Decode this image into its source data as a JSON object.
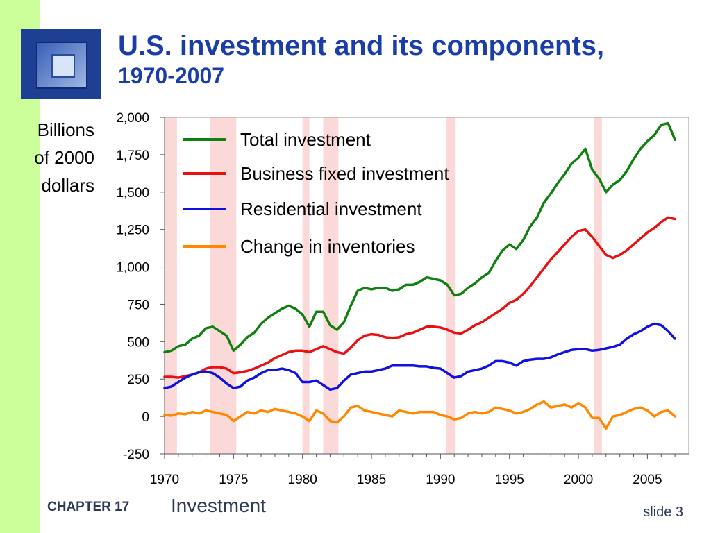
{
  "title": {
    "line1": "U.S. investment and its components,",
    "line2": "1970-2007"
  },
  "yunits": [
    "Billions",
    "of 2000",
    "dollars"
  ],
  "footer": {
    "chapter": "CHAPTER 17",
    "topic": "Investment",
    "slide": "slide 3"
  },
  "chart_data": {
    "type": "line",
    "xlim": [
      1970,
      2008
    ],
    "ylim": [
      -250,
      2000
    ],
    "x_ticks": [
      1970,
      1975,
      1980,
      1985,
      1990,
      1995,
      2000,
      2005
    ],
    "x_tick_labels": [
      "1970",
      "1975",
      "1980",
      "1985",
      "1990",
      "1995",
      "2000",
      "2005"
    ],
    "y_ticks": [
      -250,
      0,
      250,
      500,
      750,
      1000,
      1250,
      1500,
      1750,
      2000
    ],
    "y_tick_labels": [
      "-250",
      "0",
      "250",
      "500",
      "750",
      "1,000",
      "1,250",
      "1,500",
      "1,750",
      "2,000"
    ],
    "recession_color": "#fbd9d9",
    "recessions": [
      [
        1970.0,
        1970.9
      ],
      [
        1973.3,
        1975.2
      ],
      [
        1980.0,
        1980.5
      ],
      [
        1981.5,
        1982.6
      ],
      [
        1990.4,
        1991.1
      ],
      [
        2001.1,
        2001.7
      ]
    ],
    "series": [
      {
        "name": "Total investment",
        "color": "#108010",
        "x": [
          1970,
          1970.5,
          1971,
          1971.5,
          1972,
          1972.5,
          1973,
          1973.5,
          1974,
          1974.5,
          1975,
          1975.5,
          1976,
          1976.5,
          1977,
          1977.5,
          1978,
          1978.5,
          1979,
          1979.5,
          1980,
          1980.5,
          1981,
          1981.5,
          1982,
          1982.5,
          1983,
          1983.5,
          1984,
          1984.5,
          1985,
          1985.5,
          1986,
          1986.5,
          1987,
          1987.5,
          1988,
          1988.5,
          1989,
          1989.5,
          1990,
          1990.5,
          1991,
          1991.5,
          1992,
          1992.5,
          1993,
          1993.5,
          1994,
          1994.5,
          1995,
          1995.5,
          1996,
          1996.5,
          1997,
          1997.5,
          1998,
          1998.5,
          1999,
          1999.5,
          2000,
          2000.5,
          2001,
          2001.5,
          2002,
          2002.5,
          2003,
          2003.5,
          2004,
          2004.5,
          2005,
          2005.5,
          2006,
          2006.5,
          2007
        ],
        "values": [
          430,
          440,
          470,
          480,
          520,
          540,
          590,
          600,
          570,
          540,
          440,
          480,
          530,
          560,
          620,
          660,
          690,
          720,
          740,
          720,
          680,
          600,
          700,
          700,
          610,
          580,
          630,
          740,
          840,
          860,
          850,
          860,
          860,
          840,
          850,
          880,
          880,
          900,
          930,
          920,
          910,
          880,
          810,
          820,
          860,
          890,
          930,
          960,
          1040,
          1110,
          1150,
          1120,
          1180,
          1270,
          1330,
          1430,
          1490,
          1560,
          1620,
          1690,
          1730,
          1790,
          1650,
          1590,
          1500,
          1550,
          1580,
          1640,
          1720,
          1790,
          1840,
          1880,
          1950,
          1960,
          1850
        ]
      },
      {
        "name": "Business fixed investment",
        "color": "#e81010",
        "x": [
          1970,
          1970.5,
          1971,
          1971.5,
          1972,
          1972.5,
          1973,
          1973.5,
          1974,
          1974.5,
          1975,
          1975.5,
          1976,
          1976.5,
          1977,
          1977.5,
          1978,
          1978.5,
          1979,
          1979.5,
          1980,
          1980.5,
          1981,
          1981.5,
          1982,
          1982.5,
          1983,
          1983.5,
          1984,
          1984.5,
          1985,
          1985.5,
          1986,
          1986.5,
          1987,
          1987.5,
          1988,
          1988.5,
          1989,
          1989.5,
          1990,
          1990.5,
          1991,
          1991.5,
          1992,
          1992.5,
          1993,
          1993.5,
          1994,
          1994.5,
          1995,
          1995.5,
          1996,
          1996.5,
          1997,
          1997.5,
          1998,
          1998.5,
          1999,
          1999.5,
          2000,
          2000.5,
          2001,
          2001.5,
          2002,
          2002.5,
          2003,
          2003.5,
          2004,
          2004.5,
          2005,
          2005.5,
          2006,
          2006.5,
          2007
        ],
        "values": [
          265,
          265,
          260,
          270,
          280,
          295,
          320,
          330,
          330,
          320,
          290,
          295,
          305,
          320,
          340,
          360,
          390,
          410,
          430,
          440,
          440,
          430,
          450,
          470,
          450,
          430,
          420,
          460,
          510,
          540,
          550,
          545,
          530,
          525,
          530,
          550,
          560,
          580,
          600,
          600,
          595,
          580,
          560,
          555,
          580,
          610,
          630,
          660,
          690,
          720,
          760,
          780,
          820,
          870,
          930,
          990,
          1050,
          1100,
          1150,
          1200,
          1240,
          1250,
          1200,
          1140,
          1080,
          1060,
          1080,
          1110,
          1150,
          1190,
          1230,
          1260,
          1300,
          1330,
          1320
        ]
      },
      {
        "name": "Residential investment",
        "color": "#1010e0",
        "x": [
          1970,
          1970.5,
          1971,
          1971.5,
          1972,
          1972.5,
          1973,
          1973.5,
          1974,
          1974.5,
          1975,
          1975.5,
          1976,
          1976.5,
          1977,
          1977.5,
          1978,
          1978.5,
          1979,
          1979.5,
          1980,
          1980.5,
          1981,
          1981.5,
          1982,
          1982.5,
          1983,
          1983.5,
          1984,
          1984.5,
          1985,
          1985.5,
          1986,
          1986.5,
          1987,
          1987.5,
          1988,
          1988.5,
          1989,
          1989.5,
          1990,
          1990.5,
          1991,
          1991.5,
          1992,
          1992.5,
          1993,
          1993.5,
          1994,
          1994.5,
          1995,
          1995.5,
          1996,
          1996.5,
          1997,
          1997.5,
          1998,
          1998.5,
          1999,
          1999.5,
          2000,
          2000.5,
          2001,
          2001.5,
          2002,
          2002.5,
          2003,
          2003.5,
          2004,
          2004.5,
          2005,
          2005.5,
          2006,
          2006.5,
          2007
        ],
        "values": [
          190,
          200,
          230,
          260,
          280,
          295,
          300,
          290,
          260,
          220,
          190,
          200,
          240,
          260,
          290,
          310,
          310,
          320,
          310,
          290,
          230,
          230,
          240,
          210,
          180,
          190,
          240,
          280,
          290,
          300,
          300,
          310,
          320,
          340,
          340,
          340,
          340,
          335,
          335,
          325,
          320,
          290,
          260,
          270,
          300,
          310,
          320,
          340,
          370,
          370,
          360,
          340,
          370,
          380,
          385,
          385,
          395,
          415,
          430,
          445,
          450,
          450,
          440,
          445,
          455,
          465,
          480,
          520,
          550,
          570,
          600,
          620,
          610,
          570,
          520
        ]
      },
      {
        "name": "Change in inventories",
        "color": "#ff8800",
        "x": [
          1970,
          1970.5,
          1971,
          1971.5,
          1972,
          1972.5,
          1973,
          1973.5,
          1974,
          1974.5,
          1975,
          1975.5,
          1976,
          1976.5,
          1977,
          1977.5,
          1978,
          1978.5,
          1979,
          1979.5,
          1980,
          1980.5,
          1981,
          1981.5,
          1982,
          1982.5,
          1983,
          1983.5,
          1984,
          1984.5,
          1985,
          1985.5,
          1986,
          1986.5,
          1987,
          1987.5,
          1988,
          1988.5,
          1989,
          1989.5,
          1990,
          1990.5,
          1991,
          1991.5,
          1992,
          1992.5,
          1993,
          1993.5,
          1994,
          1994.5,
          1995,
          1995.5,
          1996,
          1996.5,
          1997,
          1997.5,
          1998,
          1998.5,
          1999,
          1999.5,
          2000,
          2000.5,
          2001,
          2001.5,
          2002,
          2002.5,
          2003,
          2003.5,
          2004,
          2004.5,
          2005,
          2005.5,
          2006,
          2006.5,
          2007
        ],
        "values": [
          10,
          5,
          20,
          15,
          30,
          20,
          40,
          30,
          20,
          10,
          -30,
          0,
          30,
          20,
          40,
          30,
          50,
          40,
          30,
          20,
          0,
          -30,
          40,
          20,
          -30,
          -40,
          0,
          60,
          70,
          40,
          30,
          20,
          10,
          0,
          40,
          30,
          20,
          30,
          30,
          30,
          10,
          0,
          -20,
          -10,
          20,
          30,
          20,
          30,
          60,
          50,
          40,
          20,
          30,
          50,
          80,
          100,
          60,
          70,
          80,
          60,
          90,
          60,
          -10,
          -10,
          -80,
          0,
          10,
          30,
          50,
          60,
          40,
          0,
          30,
          40,
          0
        ]
      }
    ]
  }
}
